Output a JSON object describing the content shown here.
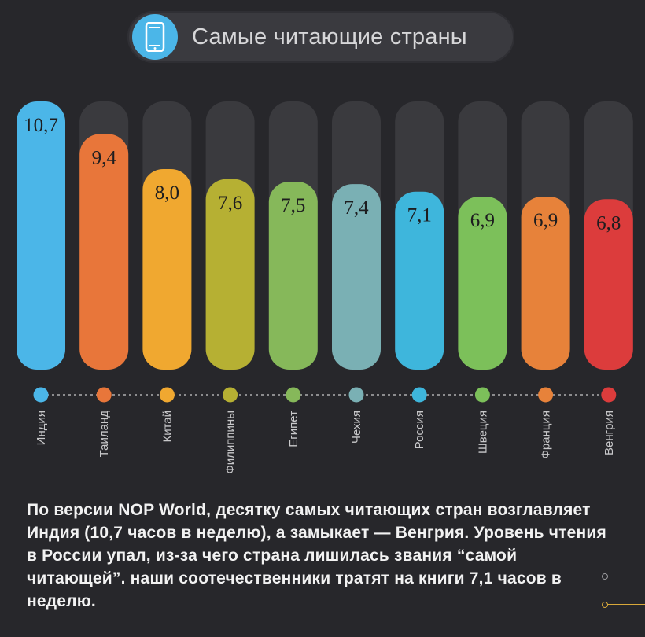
{
  "title": "Самые читающие страны",
  "icons": {
    "title_icon": "smartphone-icon"
  },
  "colors": {
    "background": "#27272b",
    "track": "#3a3a3e",
    "accent": "#4bb6e8"
  },
  "chart_data": {
    "type": "bar",
    "title": "Самые читающие страны",
    "xlabel": "",
    "ylabel": "",
    "ylim": [
      0,
      10.7
    ],
    "grid": false,
    "categories": [
      "Индия",
      "Таиланд",
      "Китай",
      "Филиппины",
      "Египет",
      "Чехия",
      "Россия",
      "Швеция",
      "Франция",
      "Венгрия"
    ],
    "values": [
      10.7,
      9.4,
      8.0,
      7.6,
      7.5,
      7.4,
      7.1,
      6.9,
      6.9,
      6.8
    ],
    "value_labels": [
      "10,7",
      "9,4",
      "8,0",
      "7,6",
      "7,5",
      "7,4",
      "7,1",
      "6,9",
      "6,9",
      "6,8"
    ],
    "bar_colors": [
      "#4bb6e8",
      "#e8763a",
      "#f0a830",
      "#b6b033",
      "#86b85a",
      "#7ab0b4",
      "#3eb6dc",
      "#7cc05a",
      "#e7823a",
      "#dc3c3c"
    ]
  },
  "description": "По версии NOP World, десятку самых читающих стран возглавляет Индия (10,7 часов в неделю), а замыкает — Венгрия. Уровень чтения в России упал, из-за чего страна лишилась звания “самой читающей”. наши соотечественники тратят на книги 7,1 часов в неделю."
}
